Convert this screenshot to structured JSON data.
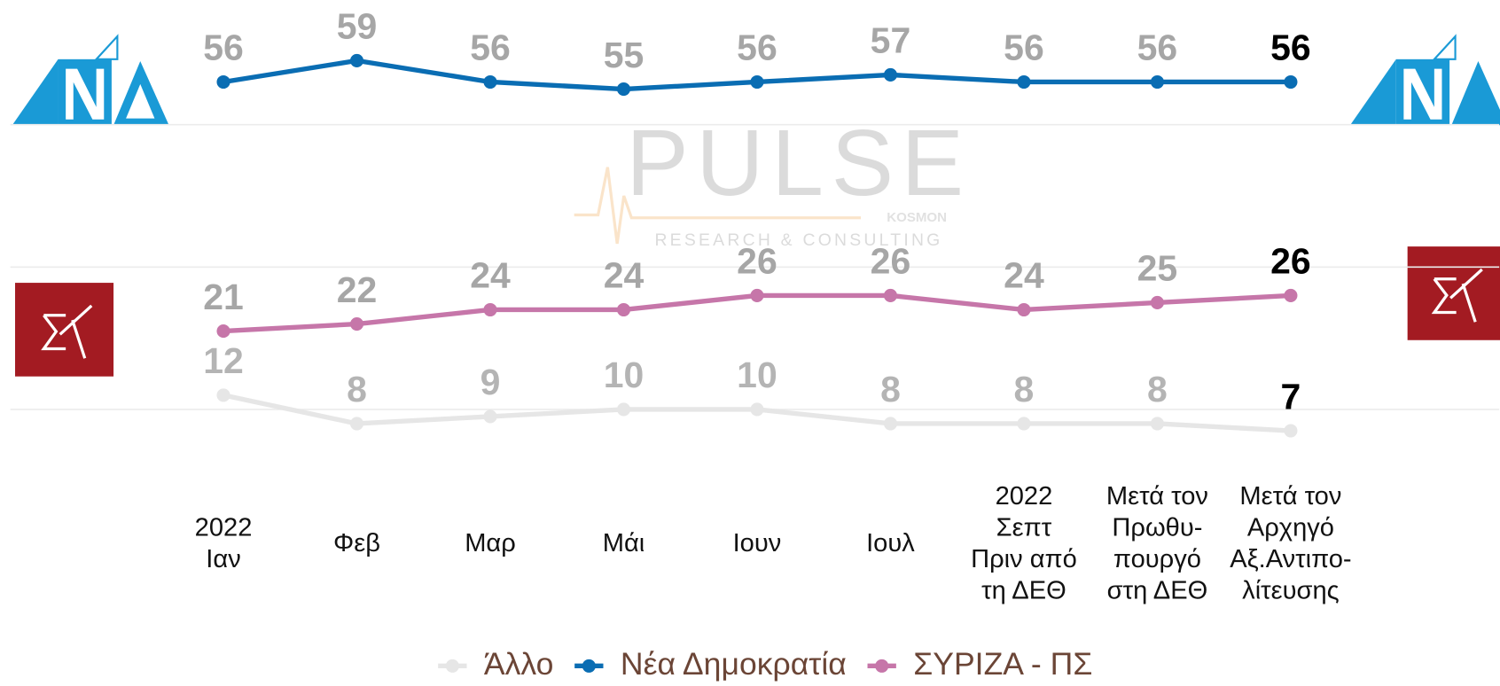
{
  "chart_data": {
    "type": "line",
    "categories": [
      [
        "2022",
        "Ιαν"
      ],
      [
        "Φεβ"
      ],
      [
        "Μαρ"
      ],
      [
        "Μάι"
      ],
      [
        "Ιουν"
      ],
      [
        "Ιουλ"
      ],
      [
        "2022",
        "Σεπτ",
        "Πριν από",
        "τη ΔΕΘ"
      ],
      [
        "Μετά τον",
        "Πρωθυ-",
        "πουργό",
        "στη ΔΕΘ"
      ],
      [
        "Μετά τον",
        "Αρχηγό",
        "Αξ.Αντιπο-",
        "λίτευσης"
      ]
    ],
    "series": [
      {
        "name": "Άλλο",
        "color": "#e6e6e6",
        "label_color": "#b4b4b4",
        "values": [
          12,
          8,
          9,
          10,
          10,
          8,
          8,
          8,
          7
        ]
      },
      {
        "name": "Νέα Δημοκρατία",
        "color": "#0a6db3",
        "label_color": "#a6a6a6",
        "values": [
          56,
          59,
          56,
          55,
          56,
          57,
          56,
          56,
          56
        ]
      },
      {
        "name": "ΣΥΡΙΖΑ - ΠΣ",
        "color": "#c676a9",
        "label_color": "#a6a6a6",
        "values": [
          21,
          22,
          24,
          24,
          26,
          26,
          24,
          25,
          26
        ]
      }
    ],
    "ylim": [
      0,
      60
    ],
    "yticks": [
      10,
      30,
      50
    ],
    "grid": true,
    "legend": "bottom",
    "watermark": {
      "brand": "PULSE",
      "sub": "RESEARCH & CONSULTING",
      "partner": "KOSMON"
    }
  }
}
